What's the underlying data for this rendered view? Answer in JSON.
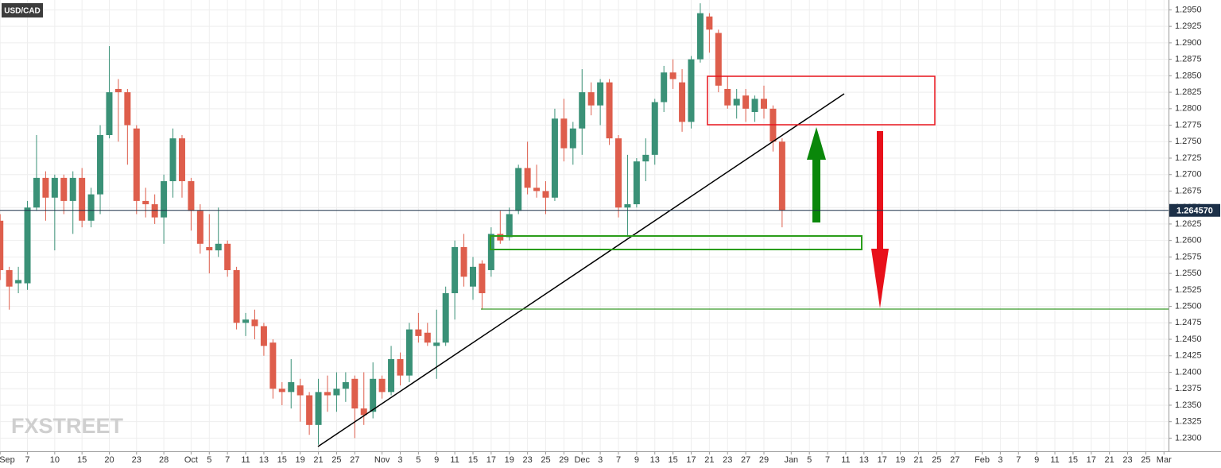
{
  "chart_data": {
    "type": "candlestick",
    "title": "USD/CAD",
    "watermark": "FXSTREET",
    "up_color": "#3a9177",
    "down_color": "#de5e4c",
    "grid": true,
    "ylim": [
      1.228,
      1.2965
    ],
    "yticks": [
      {
        "value": 1.23,
        "label": "1.2300"
      },
      {
        "value": 1.2325,
        "label": "1.2325"
      },
      {
        "value": 1.235,
        "label": "1.2350"
      },
      {
        "value": 1.2375,
        "label": "1.2375"
      },
      {
        "value": 1.24,
        "label": "1.2400"
      },
      {
        "value": 1.2425,
        "label": "1.2425"
      },
      {
        "value": 1.245,
        "label": "1.2450"
      },
      {
        "value": 1.2475,
        "label": "1.2475"
      },
      {
        "value": 1.25,
        "label": "1.2500"
      },
      {
        "value": 1.2525,
        "label": "1.2525"
      },
      {
        "value": 1.255,
        "label": "1.2550"
      },
      {
        "value": 1.2575,
        "label": "1.2575"
      },
      {
        "value": 1.26,
        "label": "1.2600"
      },
      {
        "value": 1.2625,
        "label": "1.2625"
      },
      {
        "value": 1.265,
        "label": "1.2650"
      },
      {
        "value": 1.2675,
        "label": "1.2675"
      },
      {
        "value": 1.27,
        "label": "1.2700"
      },
      {
        "value": 1.2725,
        "label": "1.2725"
      },
      {
        "value": 1.275,
        "label": "1.2750"
      },
      {
        "value": 1.2775,
        "label": "1.2775"
      },
      {
        "value": 1.28,
        "label": "1.2800"
      },
      {
        "value": 1.2825,
        "label": "1.2825"
      },
      {
        "value": 1.285,
        "label": "1.2850"
      },
      {
        "value": 1.2875,
        "label": "1.2875"
      },
      {
        "value": 1.29,
        "label": "1.2900"
      },
      {
        "value": 1.2925,
        "label": "1.2925"
      },
      {
        "value": 1.295,
        "label": "1.2950"
      }
    ],
    "last_price": {
      "value": 1.26457,
      "label": "1.264570",
      "color": "#1c3048"
    },
    "categories": [
      "Sep",
      null,
      null,
      "7",
      null,
      null,
      "10",
      null,
      null,
      "15",
      null,
      null,
      "20",
      null,
      null,
      "23",
      null,
      null,
      "28",
      null,
      null,
      "Oct",
      null,
      "5",
      null,
      "7",
      null,
      "11",
      null,
      "13",
      null,
      "15",
      null,
      "19",
      null,
      "21",
      null,
      "25",
      null,
      "27",
      null,
      null,
      "Nov",
      null,
      "3",
      null,
      "5",
      null,
      "9",
      null,
      "11",
      null,
      "15",
      null,
      "17",
      null,
      "19",
      null,
      "23",
      null,
      "25",
      null,
      "29",
      null,
      "Dec",
      null,
      "3",
      null,
      "7",
      null,
      "9",
      null,
      "13",
      null,
      "15",
      null,
      "17",
      null,
      "21",
      null,
      "23",
      null,
      "27",
      null,
      "29",
      null,
      null,
      "Jan",
      null,
      "5",
      null,
      "7",
      null,
      "11",
      null,
      "13",
      null,
      "17",
      null,
      "19",
      null,
      "21",
      null,
      "25",
      null,
      "27",
      null,
      null,
      "Feb",
      null,
      "3",
      null,
      "7",
      null,
      "9",
      null,
      "11",
      null,
      "15",
      null,
      "17",
      null,
      "21",
      null,
      "23",
      null,
      "25",
      null,
      "Mar"
    ],
    "open": [
      1.263,
      1.2555,
      1.2535,
      1.2535,
      1.265,
      1.2695,
      1.2665,
      1.2695,
      1.266,
      1.2695,
      1.263,
      1.267,
      1.276,
      1.283,
      1.2825,
      1.277,
      1.266,
      1.2655,
      1.2635,
      1.269,
      1.2755,
      1.269,
      1.2645,
      1.259,
      1.2585,
      1.2595,
      1.2555,
      1.2475,
      1.248,
      1.247,
      1.2445,
      1.2375,
      1.237,
      1.238,
      1.2365,
      1.232,
      1.237,
      1.2365,
      1.2375,
      1.239,
      1.2345,
      1.234,
      1.239,
      1.237,
      1.242,
      1.2395,
      1.2465,
      1.246,
      1.244,
      1.2445,
      1.252,
      1.259,
      1.253,
      1.2565,
      1.2555,
      1.261,
      1.2605,
      1.2645,
      1.271,
      1.268,
      1.2675,
      1.2665,
      1.2785,
      1.274,
      1.277,
      1.2825,
      1.2805,
      1.284,
      1.2755,
      1.265,
      1.2655,
      1.272,
      1.273,
      1.281,
      1.2855,
      1.284,
      1.278,
      1.2875,
      1.294,
      1.2915,
      1.283,
      1.2805,
      1.282,
      1.2795,
      1.2815,
      1.28,
      1.275,
      null,
      null,
      null,
      null,
      null,
      null,
      null,
      null,
      null,
      null,
      null,
      null,
      null,
      null,
      null,
      null,
      null,
      null,
      null,
      null,
      null,
      null,
      null,
      null,
      null,
      null,
      null,
      null,
      null,
      null,
      null,
      null,
      null,
      null,
      null,
      null,
      null,
      null,
      null,
      null,
      null,
      null
    ],
    "high": [
      1.264,
      1.256,
      1.256,
      1.266,
      1.276,
      1.2705,
      1.27,
      1.27,
      1.2705,
      1.271,
      1.268,
      1.2775,
      1.2895,
      1.2845,
      1.283,
      1.2775,
      1.268,
      1.267,
      1.27,
      1.277,
      1.276,
      1.2695,
      1.2655,
      1.264,
      1.265,
      1.26,
      1.256,
      1.249,
      1.2495,
      1.2475,
      1.245,
      1.2385,
      1.242,
      1.239,
      1.237,
      1.239,
      1.2395,
      1.24,
      1.24,
      1.2395,
      1.24,
      1.2415,
      1.2395,
      1.244,
      1.243,
      1.2475,
      1.249,
      1.2475,
      1.2495,
      1.253,
      1.26,
      1.261,
      1.2575,
      1.257,
      1.262,
      1.2645,
      1.265,
      1.2715,
      1.275,
      1.2715,
      1.269,
      1.28,
      1.2815,
      1.278,
      1.286,
      1.284,
      1.2845,
      1.2845,
      1.276,
      1.273,
      1.2725,
      1.2755,
      1.2815,
      1.2865,
      1.2875,
      1.286,
      1.288,
      1.296,
      1.2945,
      1.292,
      1.285,
      1.283,
      1.283,
      1.282,
      1.2835,
      1.2805,
      1.2755,
      null,
      null,
      null,
      null,
      null,
      null,
      null,
      null,
      null,
      null,
      null,
      null,
      null,
      null,
      null,
      null,
      null,
      null,
      null,
      null,
      null,
      null,
      null,
      null,
      null,
      null,
      null,
      null,
      null,
      null,
      null,
      null,
      null,
      null,
      null,
      null,
      null,
      null,
      null,
      null,
      null,
      null
    ],
    "low": [
      1.254,
      1.2495,
      1.252,
      1.2525,
      1.2645,
      1.263,
      1.2585,
      1.264,
      1.261,
      1.262,
      1.262,
      1.264,
      1.2755,
      1.275,
      1.2715,
      1.264,
      1.2635,
      1.2625,
      1.2595,
      1.2665,
      1.2665,
      1.2615,
      1.258,
      1.255,
      1.2575,
      1.2545,
      1.2465,
      1.2455,
      1.245,
      1.2425,
      1.236,
      1.235,
      1.2345,
      1.2325,
      1.2305,
      1.229,
      1.234,
      1.234,
      1.2355,
      1.23,
      1.232,
      1.233,
      1.236,
      1.2365,
      1.238,
      1.2385,
      1.2445,
      1.244,
      1.239,
      1.244,
      1.248,
      1.253,
      1.251,
      1.2495,
      1.2545,
      1.2595,
      1.26,
      1.264,
      1.267,
      1.2665,
      1.264,
      1.266,
      1.272,
      1.2715,
      1.273,
      1.279,
      1.2775,
      1.2745,
      1.2635,
      1.2605,
      1.265,
      1.269,
      1.2715,
      1.2795,
      1.283,
      1.2765,
      1.277,
      1.287,
      1.2885,
      1.2825,
      1.28,
      1.2785,
      1.278,
      1.278,
      1.2785,
      1.2735,
      1.262,
      null,
      null,
      null,
      null,
      null,
      null,
      null,
      null,
      null,
      null,
      null,
      null,
      null,
      null,
      null,
      null,
      null,
      null,
      null,
      null,
      null,
      null,
      null,
      null,
      null,
      null,
      null,
      null,
      null,
      null,
      null,
      null,
      null,
      null,
      null,
      null,
      null,
      null,
      null,
      null,
      null,
      null
    ],
    "close": [
      1.2555,
      1.253,
      1.254,
      1.265,
      1.2695,
      1.2665,
      1.2695,
      1.266,
      1.2695,
      1.263,
      1.267,
      1.276,
      1.2825,
      1.2825,
      1.2775,
      1.266,
      1.2655,
      1.2635,
      1.269,
      1.2755,
      1.269,
      1.2645,
      1.2595,
      1.2585,
      1.2595,
      1.2555,
      1.2475,
      1.248,
      1.247,
      1.244,
      1.2375,
      1.237,
      1.2385,
      1.2365,
      1.232,
      1.237,
      1.2365,
      1.2375,
      1.2385,
      1.2345,
      1.2335,
      1.239,
      1.237,
      1.242,
      1.2395,
      1.2465,
      1.2455,
      1.2445,
      1.2445,
      1.252,
      1.259,
      1.2545,
      1.256,
      1.252,
      1.261,
      1.26,
      1.264,
      1.271,
      1.268,
      1.2675,
      1.2665,
      1.2785,
      1.274,
      1.277,
      1.2825,
      1.2805,
      1.284,
      1.2755,
      1.265,
      1.2655,
      1.272,
      1.273,
      1.281,
      1.2855,
      1.2845,
      1.278,
      1.2875,
      1.2945,
      1.292,
      1.2835,
      1.2805,
      1.2815,
      1.28,
      1.2815,
      1.28,
      1.275,
      1.2646,
      null,
      null,
      null,
      null,
      null,
      null,
      null,
      null,
      null,
      null,
      null,
      null,
      null,
      null,
      null,
      null,
      null,
      null,
      null,
      null,
      null,
      null,
      null,
      null,
      null,
      null,
      null,
      null,
      null,
      null,
      null,
      null,
      null,
      null,
      null,
      null,
      null,
      null,
      null,
      null,
      null,
      null
    ]
  }
}
